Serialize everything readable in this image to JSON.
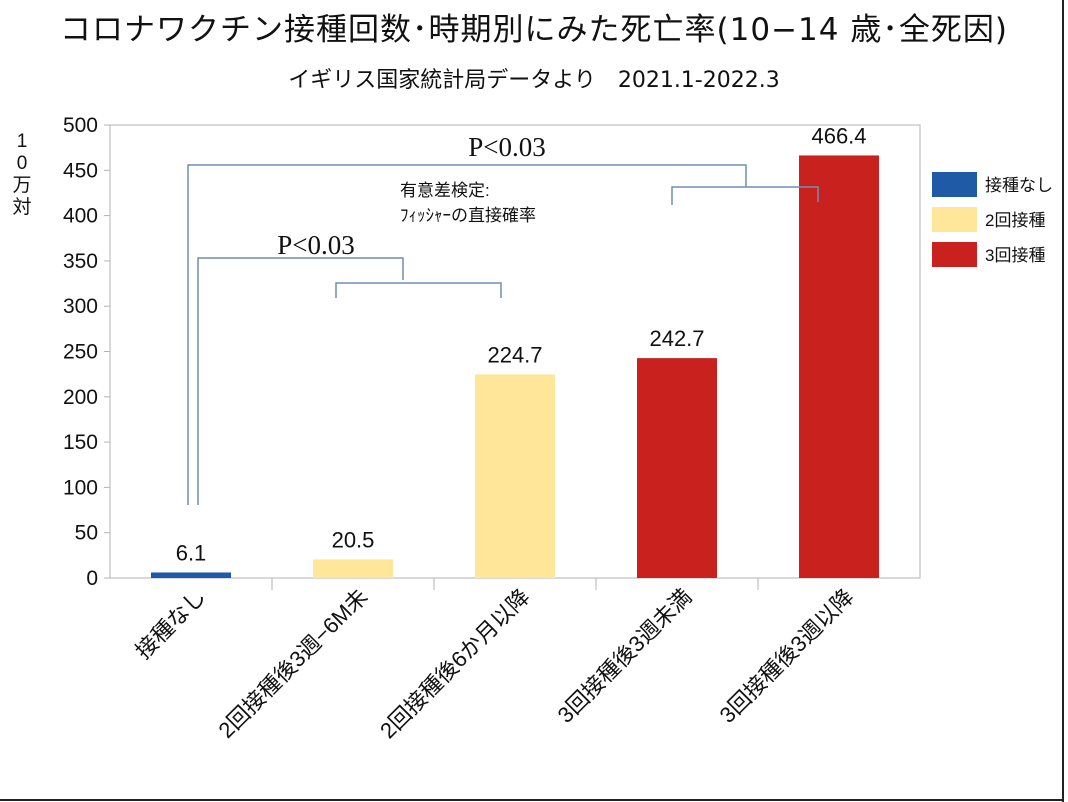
{
  "title": "コロナワクチン接種回数･時期別にみた死亡率(10−14 歳･全死因)",
  "subtitle": "イギリス国家統計局データより　2021.1-2022.3",
  "chart_data": {
    "type": "bar",
    "ylabel": "10万対",
    "ylim": [
      0,
      500
    ],
    "yticks": [
      0,
      50,
      100,
      150,
      200,
      250,
      300,
      350,
      400,
      450,
      500
    ],
    "grid": false,
    "categories": [
      "接種なし",
      "2回接種後3週−6M未",
      "2回接種後6か月以降",
      "3回接種後3週未満",
      "3回接種後3週以降"
    ],
    "values": [
      6.1,
      20.5,
      224.7,
      242.7,
      466.4
    ],
    "data_labels": [
      "6.1",
      "20.5",
      "224.7",
      "242.7",
      "466.4"
    ],
    "bar_groups": [
      "接種なし",
      "2回接種",
      "2回接種",
      "3回接種",
      "3回接種"
    ],
    "legend": {
      "placement": "right",
      "entries": [
        {
          "name": "接種なし",
          "color": "#1f5aa6"
        },
        {
          "name": "2回接種",
          "color": "#ffe699"
        },
        {
          "name": "3回接種",
          "color": "#c9211e"
        }
      ]
    },
    "annotations": {
      "significance_labels": [
        "P<0.03",
        "P<0.03"
      ],
      "note_lines": [
        "有意差検定:",
        "ﾌｨｯｼｬｰの直接確率"
      ],
      "bracket_color": "#6f8fb0"
    }
  }
}
